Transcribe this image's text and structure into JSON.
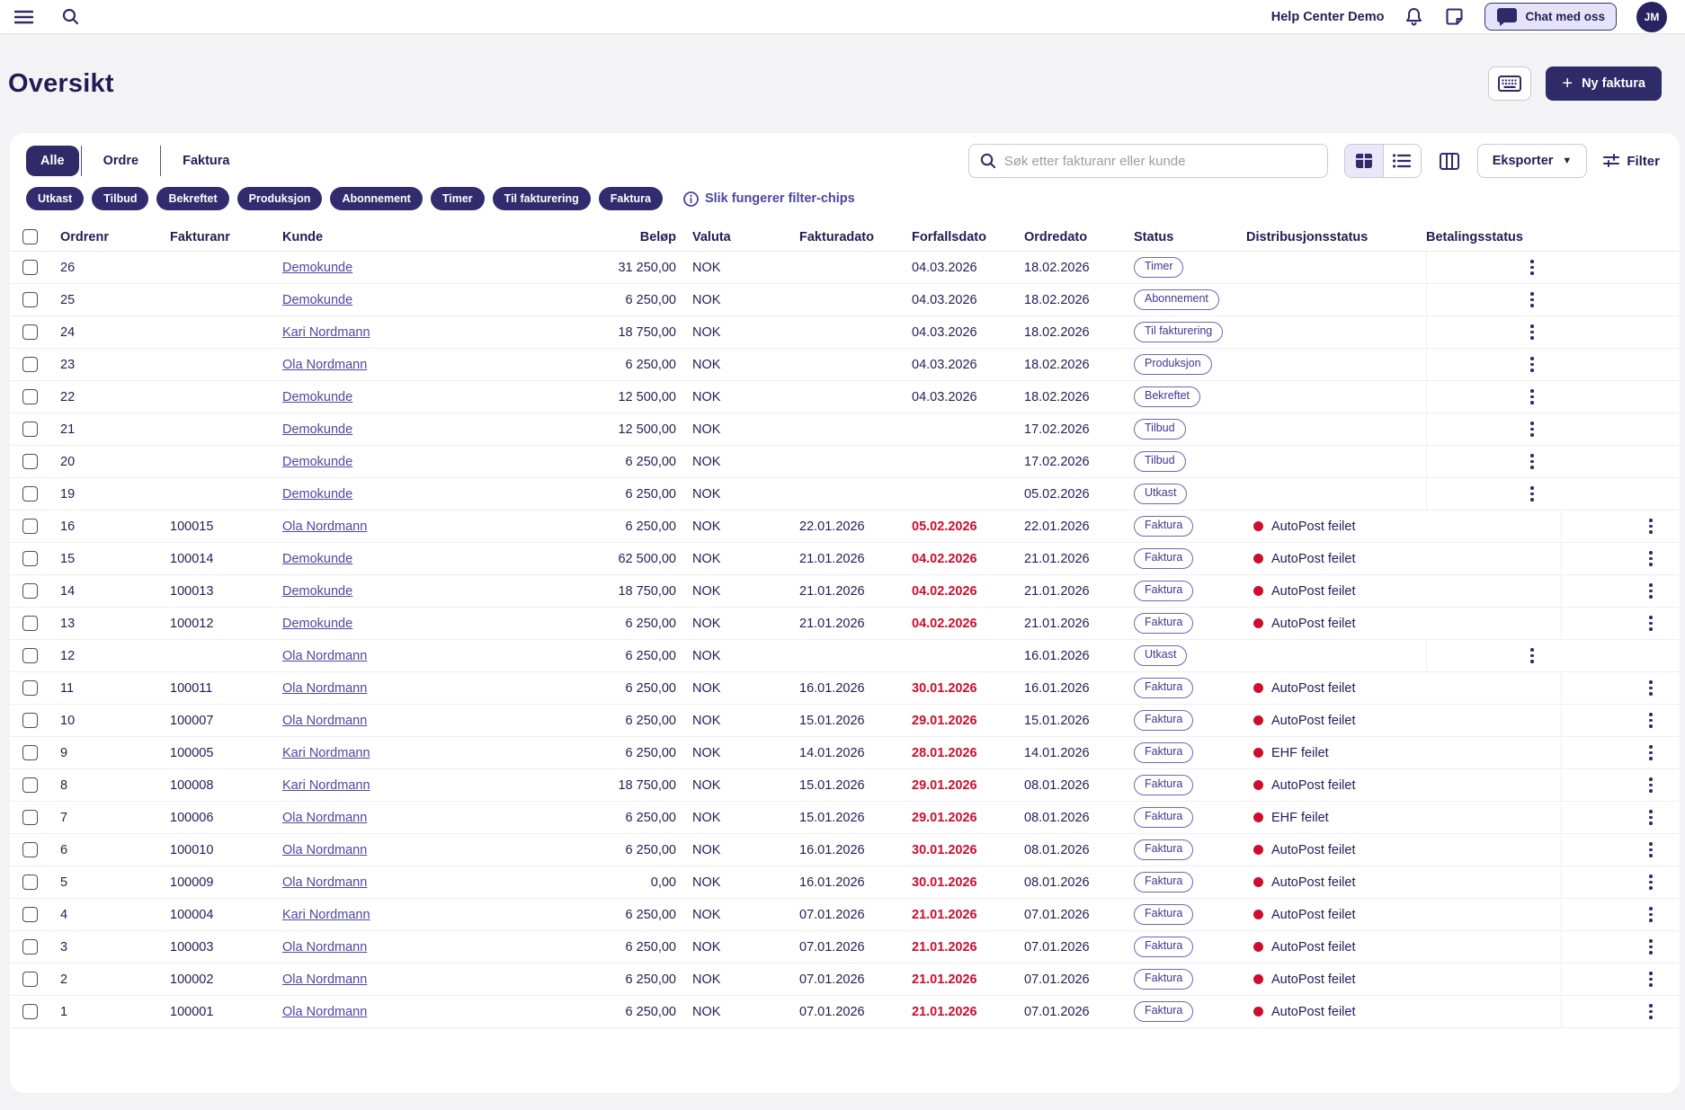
{
  "topbar": {
    "help_center_label": "Help Center Demo",
    "chat_button_label": "Chat med oss",
    "avatar_initials": "JM"
  },
  "page": {
    "title": "Oversikt",
    "new_invoice_label": "Ny faktura"
  },
  "tabs": [
    {
      "label": "Alle",
      "active": true
    },
    {
      "label": "Ordre",
      "active": false
    },
    {
      "label": "Faktura",
      "active": false
    }
  ],
  "toolbar": {
    "search_placeholder": "Søk etter fakturanr eller kunde",
    "export_label": "Eksporter",
    "filter_label": "Filter"
  },
  "filter_chips": [
    "Utkast",
    "Tilbud",
    "Bekreftet",
    "Produksjon",
    "Abonnement",
    "Timer",
    "Til fakturering",
    "Faktura"
  ],
  "chips_help_label": "Slik fungerer filter-chips",
  "colors": {
    "accent_navy": "#2f2a68",
    "badge_purple": "#3e3894",
    "overdue_red": "#ce0d2e",
    "link_indigo": "#4d47a5"
  },
  "table": {
    "columns": [
      "Ordrenr",
      "Fakturanr",
      "Kunde",
      "Beløp",
      "Valuta",
      "Fakturadato",
      "Forfallsdato",
      "Ordredato",
      "Status",
      "Distribusjonsstatus",
      "Betalingsstatus"
    ],
    "rows": [
      {
        "ordrenr": "26",
        "fakturanr": "",
        "kunde": "Demokunde",
        "belop": "31 250,00",
        "valuta": "NOK",
        "fakturadato": "",
        "forfallsdato": "04.03.2026",
        "overdue": false,
        "ordredato": "18.02.2026",
        "status": "Timer",
        "dist": ""
      },
      {
        "ordrenr": "25",
        "fakturanr": "",
        "kunde": "Demokunde",
        "belop": "6 250,00",
        "valuta": "NOK",
        "fakturadato": "",
        "forfallsdato": "04.03.2026",
        "overdue": false,
        "ordredato": "18.02.2026",
        "status": "Abonnement",
        "dist": ""
      },
      {
        "ordrenr": "24",
        "fakturanr": "",
        "kunde": "Kari Nordmann",
        "belop": "18 750,00",
        "valuta": "NOK",
        "fakturadato": "",
        "forfallsdato": "04.03.2026",
        "overdue": false,
        "ordredato": "18.02.2026",
        "status": "Til fakturering",
        "dist": ""
      },
      {
        "ordrenr": "23",
        "fakturanr": "",
        "kunde": "Ola Nordmann",
        "belop": "6 250,00",
        "valuta": "NOK",
        "fakturadato": "",
        "forfallsdato": "04.03.2026",
        "overdue": false,
        "ordredato": "18.02.2026",
        "status": "Produksjon",
        "dist": ""
      },
      {
        "ordrenr": "22",
        "fakturanr": "",
        "kunde": "Demokunde",
        "belop": "12 500,00",
        "valuta": "NOK",
        "fakturadato": "",
        "forfallsdato": "04.03.2026",
        "overdue": false,
        "ordredato": "18.02.2026",
        "status": "Bekreftet",
        "dist": ""
      },
      {
        "ordrenr": "21",
        "fakturanr": "",
        "kunde": "Demokunde",
        "belop": "12 500,00",
        "valuta": "NOK",
        "fakturadato": "",
        "forfallsdato": "",
        "overdue": false,
        "ordredato": "17.02.2026",
        "status": "Tilbud",
        "dist": ""
      },
      {
        "ordrenr": "20",
        "fakturanr": "",
        "kunde": "Demokunde",
        "belop": "6 250,00",
        "valuta": "NOK",
        "fakturadato": "",
        "forfallsdato": "",
        "overdue": false,
        "ordredato": "17.02.2026",
        "status": "Tilbud",
        "dist": ""
      },
      {
        "ordrenr": "19",
        "fakturanr": "",
        "kunde": "Demokunde",
        "belop": "6 250,00",
        "valuta": "NOK",
        "fakturadato": "",
        "forfallsdato": "",
        "overdue": false,
        "ordredato": "05.02.2026",
        "status": "Utkast",
        "dist": ""
      },
      {
        "ordrenr": "16",
        "fakturanr": "100015",
        "kunde": "Ola Nordmann",
        "belop": "6 250,00",
        "valuta": "NOK",
        "fakturadato": "22.01.2026",
        "forfallsdato": "05.02.2026",
        "overdue": true,
        "ordredato": "22.01.2026",
        "status": "Faktura",
        "dist": "AutoPost feilet"
      },
      {
        "ordrenr": "15",
        "fakturanr": "100014",
        "kunde": "Demokunde",
        "belop": "62 500,00",
        "valuta": "NOK",
        "fakturadato": "21.01.2026",
        "forfallsdato": "04.02.2026",
        "overdue": true,
        "ordredato": "21.01.2026",
        "status": "Faktura",
        "dist": "AutoPost feilet"
      },
      {
        "ordrenr": "14",
        "fakturanr": "100013",
        "kunde": "Demokunde",
        "belop": "18 750,00",
        "valuta": "NOK",
        "fakturadato": "21.01.2026",
        "forfallsdato": "04.02.2026",
        "overdue": true,
        "ordredato": "21.01.2026",
        "status": "Faktura",
        "dist": "AutoPost feilet"
      },
      {
        "ordrenr": "13",
        "fakturanr": "100012",
        "kunde": "Demokunde",
        "belop": "6 250,00",
        "valuta": "NOK",
        "fakturadato": "21.01.2026",
        "forfallsdato": "04.02.2026",
        "overdue": true,
        "ordredato": "21.01.2026",
        "status": "Faktura",
        "dist": "AutoPost feilet"
      },
      {
        "ordrenr": "12",
        "fakturanr": "",
        "kunde": "Ola Nordmann",
        "belop": "6 250,00",
        "valuta": "NOK",
        "fakturadato": "",
        "forfallsdato": "",
        "overdue": false,
        "ordredato": "16.01.2026",
        "status": "Utkast",
        "dist": ""
      },
      {
        "ordrenr": "11",
        "fakturanr": "100011",
        "kunde": "Ola Nordmann",
        "belop": "6 250,00",
        "valuta": "NOK",
        "fakturadato": "16.01.2026",
        "forfallsdato": "30.01.2026",
        "overdue": true,
        "ordredato": "16.01.2026",
        "status": "Faktura",
        "dist": "AutoPost feilet"
      },
      {
        "ordrenr": "10",
        "fakturanr": "100007",
        "kunde": "Ola Nordmann",
        "belop": "6 250,00",
        "valuta": "NOK",
        "fakturadato": "15.01.2026",
        "forfallsdato": "29.01.2026",
        "overdue": true,
        "ordredato": "15.01.2026",
        "status": "Faktura",
        "dist": "AutoPost feilet"
      },
      {
        "ordrenr": "9",
        "fakturanr": "100005",
        "kunde": "Kari Nordmann",
        "belop": "6 250,00",
        "valuta": "NOK",
        "fakturadato": "14.01.2026",
        "forfallsdato": "28.01.2026",
        "overdue": true,
        "ordredato": "14.01.2026",
        "status": "Faktura",
        "dist": "EHF feilet"
      },
      {
        "ordrenr": "8",
        "fakturanr": "100008",
        "kunde": "Kari Nordmann",
        "belop": "18 750,00",
        "valuta": "NOK",
        "fakturadato": "15.01.2026",
        "forfallsdato": "29.01.2026",
        "overdue": true,
        "ordredato": "08.01.2026",
        "status": "Faktura",
        "dist": "AutoPost feilet"
      },
      {
        "ordrenr": "7",
        "fakturanr": "100006",
        "kunde": "Ola Nordmann",
        "belop": "6 250,00",
        "valuta": "NOK",
        "fakturadato": "15.01.2026",
        "forfallsdato": "29.01.2026",
        "overdue": true,
        "ordredato": "08.01.2026",
        "status": "Faktura",
        "dist": "EHF feilet"
      },
      {
        "ordrenr": "6",
        "fakturanr": "100010",
        "kunde": "Ola Nordmann",
        "belop": "6 250,00",
        "valuta": "NOK",
        "fakturadato": "16.01.2026",
        "forfallsdato": "30.01.2026",
        "overdue": true,
        "ordredato": "08.01.2026",
        "status": "Faktura",
        "dist": "AutoPost feilet"
      },
      {
        "ordrenr": "5",
        "fakturanr": "100009",
        "kunde": "Ola Nordmann",
        "belop": "0,00",
        "valuta": "NOK",
        "fakturadato": "16.01.2026",
        "forfallsdato": "30.01.2026",
        "overdue": true,
        "ordredato": "08.01.2026",
        "status": "Faktura",
        "dist": "AutoPost feilet"
      },
      {
        "ordrenr": "4",
        "fakturanr": "100004",
        "kunde": "Kari Nordmann",
        "belop": "6 250,00",
        "valuta": "NOK",
        "fakturadato": "07.01.2026",
        "forfallsdato": "21.01.2026",
        "overdue": true,
        "ordredato": "07.01.2026",
        "status": "Faktura",
        "dist": "AutoPost feilet"
      },
      {
        "ordrenr": "3",
        "fakturanr": "100003",
        "kunde": "Ola Nordmann",
        "belop": "6 250,00",
        "valuta": "NOK",
        "fakturadato": "07.01.2026",
        "forfallsdato": "21.01.2026",
        "overdue": true,
        "ordredato": "07.01.2026",
        "status": "Faktura",
        "dist": "AutoPost feilet"
      },
      {
        "ordrenr": "2",
        "fakturanr": "100002",
        "kunde": "Ola Nordmann",
        "belop": "6 250,00",
        "valuta": "NOK",
        "fakturadato": "07.01.2026",
        "forfallsdato": "21.01.2026",
        "overdue": true,
        "ordredato": "07.01.2026",
        "status": "Faktura",
        "dist": "AutoPost feilet"
      },
      {
        "ordrenr": "1",
        "fakturanr": "100001",
        "kunde": "Ola Nordmann",
        "belop": "6 250,00",
        "valuta": "NOK",
        "fakturadato": "07.01.2026",
        "forfallsdato": "21.01.2026",
        "overdue": true,
        "ordredato": "07.01.2026",
        "status": "Faktura",
        "dist": "AutoPost feilet"
      }
    ]
  }
}
